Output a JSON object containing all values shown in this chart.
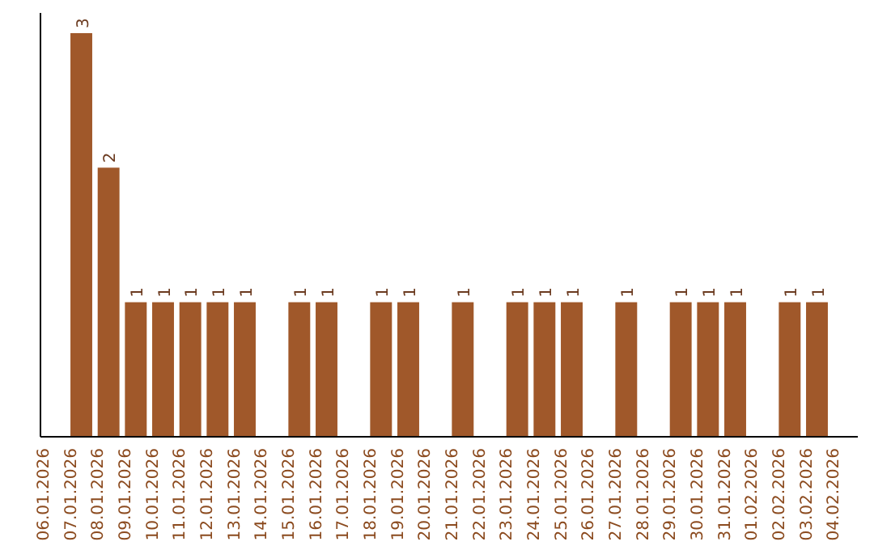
{
  "chart_data": {
    "type": "bar",
    "categories": [
      "06.01.2026",
      "07.01.2026",
      "08.01.2026",
      "09.01.2026",
      "10.01.2026",
      "11.01.2026",
      "12.01.2026",
      "13.01.2026",
      "14.01.2026",
      "15.01.2026",
      "16.01.2026",
      "17.01.2026",
      "18.01.2026",
      "19.01.2026",
      "20.01.2026",
      "21.01.2026",
      "22.01.2026",
      "23.01.2026",
      "24.01.2026",
      "25.01.2026",
      "26.01.2026",
      "27.01.2026",
      "28.01.2026",
      "29.01.2026",
      "30.01.2026",
      "31.01.2026",
      "01.02.2026",
      "02.02.2026",
      "03.02.2026",
      "04.02.2026"
    ],
    "values": [
      0,
      3,
      2,
      1,
      1,
      1,
      1,
      1,
      0,
      1,
      1,
      0,
      1,
      1,
      0,
      1,
      0,
      1,
      1,
      1,
      0,
      1,
      0,
      1,
      1,
      1,
      0,
      1,
      1,
      0
    ],
    "value_labels": [
      null,
      "3",
      "2",
      "1",
      "1",
      "1",
      "1",
      "1",
      null,
      "1",
      "1",
      null,
      "1",
      "1",
      null,
      "1",
      null,
      "1",
      "1",
      "1",
      null,
      "1",
      null,
      "1",
      "1",
      "1",
      null,
      "1",
      "1",
      null
    ],
    "color": "#a0582a"
  }
}
